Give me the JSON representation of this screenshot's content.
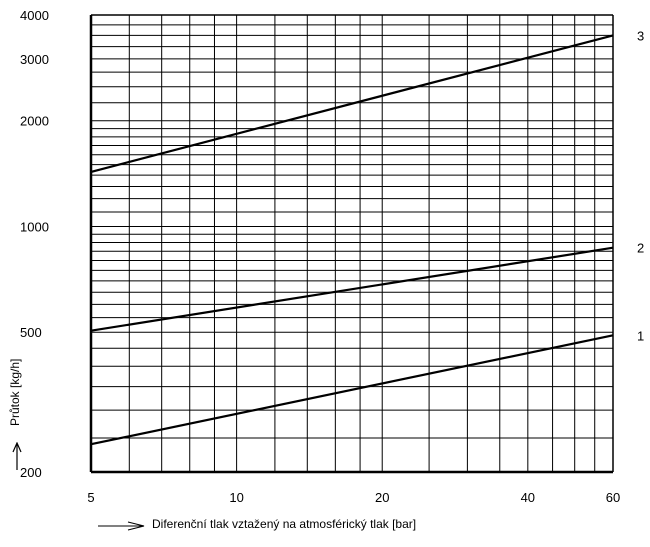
{
  "chart_data": {
    "type": "line",
    "title": "",
    "xlabel": "Diferenční tlak vztažený na atmosférický tlak [bar]",
    "ylabel": "Průtok [kg/h]",
    "xscale": "log",
    "yscale": "log",
    "xlim": [
      5,
      60
    ],
    "ylim": [
      200,
      4000
    ],
    "grid": true,
    "xticks": [
      5,
      10,
      20,
      40,
      60
    ],
    "xtick_labels": [
      "5",
      "10",
      "20",
      "40",
      "60"
    ],
    "yticks": [
      200,
      500,
      1000,
      2000,
      3000,
      4000
    ],
    "ytick_labels": [
      "200",
      "500",
      "1000",
      "2000",
      "3000",
      "4000"
    ],
    "series": [
      {
        "name": "1",
        "x": [
          5,
          60
        ],
        "y": [
          240,
          490
        ]
      },
      {
        "name": "2",
        "x": [
          5,
          60
        ],
        "y": [
          505,
          870
        ]
      },
      {
        "name": "3",
        "x": [
          5,
          60
        ],
        "y": [
          1430,
          3500
        ]
      }
    ]
  }
}
